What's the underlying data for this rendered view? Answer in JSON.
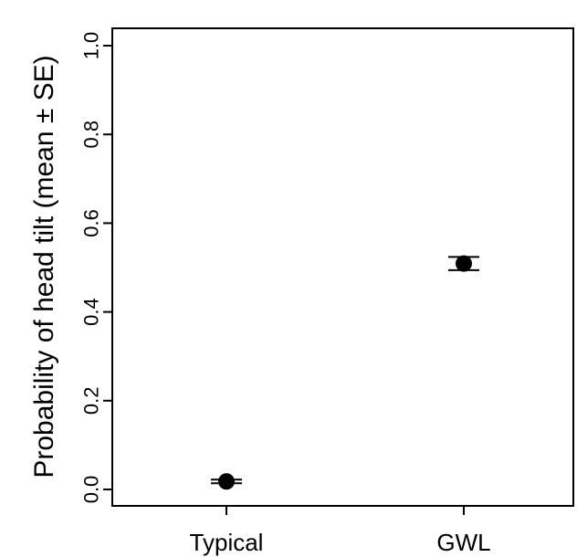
{
  "chart_data": {
    "type": "scatter",
    "title": "",
    "xlabel": "",
    "ylabel": "Probability of head tilt (mean ± SE)",
    "categories": [
      "Typical",
      "GWL"
    ],
    "ylim": [
      0,
      1
    ],
    "yticks": [
      "0.0",
      "0.2",
      "0.4",
      "0.6",
      "0.8",
      "1.0"
    ],
    "ytick_values": [
      0.0,
      0.2,
      0.4,
      0.6,
      0.8,
      1.0
    ],
    "series": [
      {
        "points": [
          {
            "category": "Typical",
            "mean": 0.018,
            "se": 0.004
          },
          {
            "category": "GWL",
            "mean": 0.509,
            "se": 0.015
          }
        ]
      }
    ],
    "grid": false,
    "legend": "none",
    "colors": {
      "marker": "#000000",
      "axis": "#000000"
    }
  }
}
